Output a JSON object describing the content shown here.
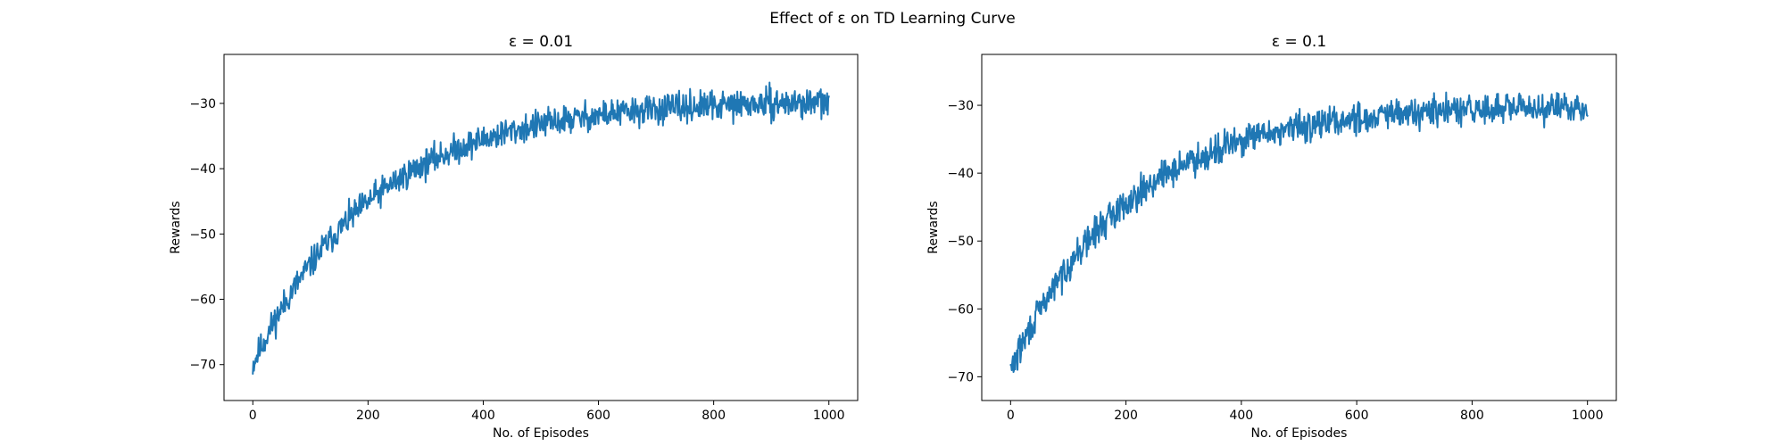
{
  "figure": {
    "title": "Effect of ε on TD Learning Curve"
  },
  "chart_data": [
    {
      "type": "line",
      "title": "ε = 0.01",
      "xlabel": "No. of Episodes",
      "ylabel": "Rewards",
      "xlim": [
        -50,
        1050
      ],
      "ylim": [
        -75.5,
        -22.5
      ],
      "xticks": [
        0,
        200,
        400,
        600,
        800,
        1000
      ],
      "yticks": [
        -70,
        -60,
        -50,
        -40,
        -30
      ],
      "grid": false,
      "color": "#1f77b4",
      "curve": {
        "episodes": 1000,
        "start": -70,
        "plateau": -29.5,
        "decay_episodes": 210,
        "noise_amplitude": 1.6,
        "seed": 11
      },
      "series": [
        {
          "x": [
            0,
            50,
            100,
            150,
            200,
            250,
            300,
            350,
            400,
            450,
            500,
            550,
            600,
            650,
            700,
            750,
            800,
            850,
            900,
            950,
            1000
          ],
          "values": [
            -70,
            -62,
            -55,
            -49.5,
            -45,
            -41.5,
            -38.5,
            -36,
            -34.5,
            -33,
            -31.8,
            -31,
            -30.5,
            -30.2,
            -29.8,
            -29.5,
            -29.3,
            -29.2,
            -29,
            -29,
            -28.8
          ]
        }
      ]
    },
    {
      "type": "line",
      "title": "ε = 0.1",
      "xlabel": "No. of Episodes",
      "ylabel": "Rewards",
      "xlim": [
        -50,
        1050
      ],
      "ylim": [
        -73.5,
        -22.5
      ],
      "xticks": [
        0,
        200,
        400,
        600,
        800,
        1000
      ],
      "yticks": [
        -70,
        -60,
        -50,
        -40,
        -30
      ],
      "grid": false,
      "color": "#1f77b4",
      "curve": {
        "episodes": 1000,
        "start": -69,
        "plateau": -30,
        "decay_episodes": 200,
        "noise_amplitude": 1.6,
        "seed": 29
      },
      "series": [
        {
          "x": [
            0,
            50,
            100,
            150,
            200,
            250,
            300,
            350,
            400,
            450,
            500,
            550,
            600,
            650,
            700,
            750,
            800,
            850,
            900,
            950,
            1000
          ],
          "values": [
            -68,
            -62,
            -55,
            -49,
            -44.5,
            -40.5,
            -37.5,
            -35.5,
            -34,
            -33,
            -32,
            -31.2,
            -30.8,
            -30.5,
            -30.2,
            -30,
            -29.8,
            -29.7,
            -29.5,
            -29.5,
            -29.5
          ]
        }
      ]
    }
  ]
}
